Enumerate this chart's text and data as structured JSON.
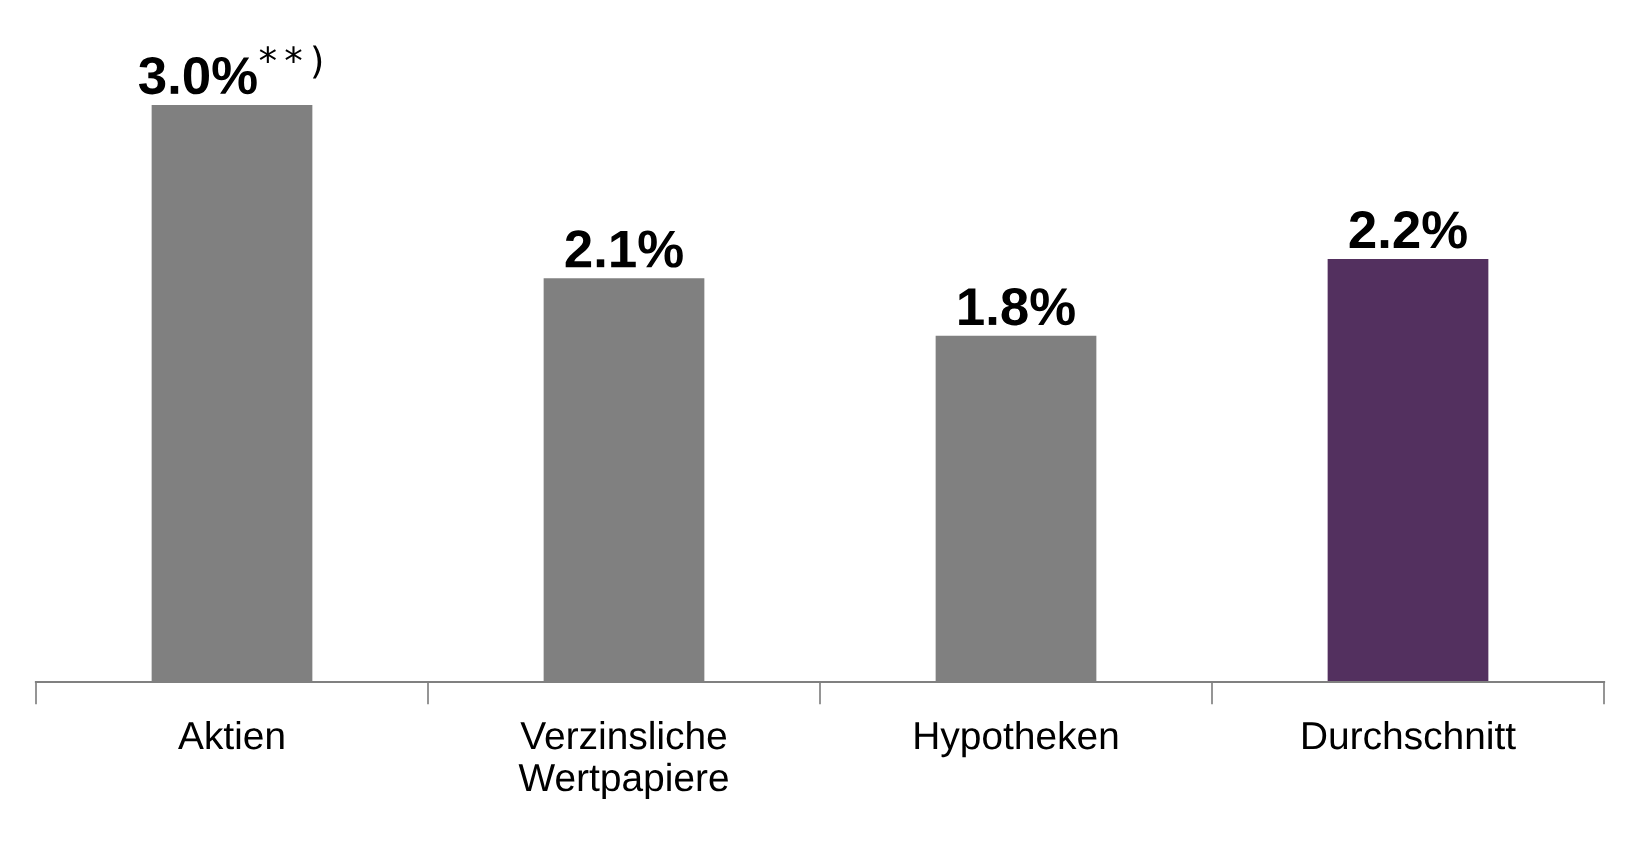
{
  "chart_data": {
    "type": "bar",
    "categories": [
      "Aktien",
      "Verzinsliche\nWertpapiere",
      "Hypotheken",
      "Durchschnitt"
    ],
    "values": [
      3.0,
      2.1,
      1.8,
      2.2
    ],
    "colors": [
      "#808080",
      "#808080",
      "#808080",
      "#53305f"
    ],
    "value_labels": [
      "3.0%$^{**)}$",
      "2.1%",
      "1.8%",
      "2.2%"
    ],
    "grid": false,
    "legend": false
  }
}
